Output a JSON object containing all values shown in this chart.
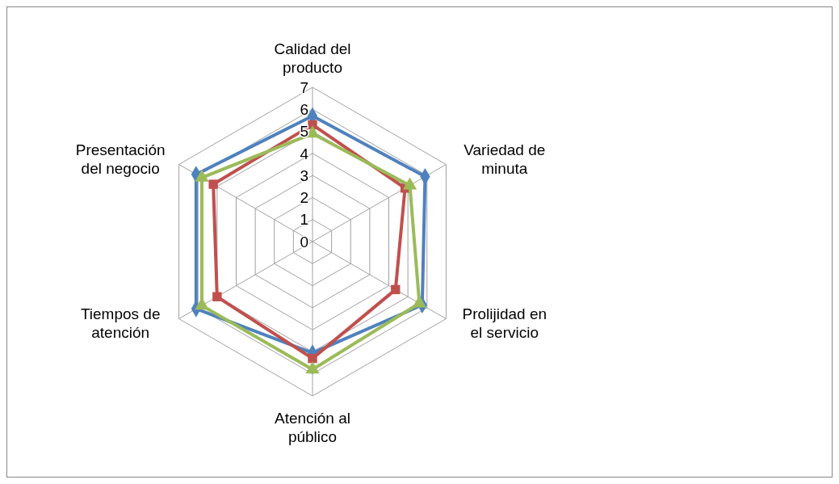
{
  "chart_data": {
    "type": "radar",
    "categories": [
      "Calidad del producto",
      "Variedad de minuta",
      "Prolijidad en el servicio",
      "Atención al público",
      "Tiempos de atención",
      "Presentación del negocio"
    ],
    "series": [
      {
        "color": "#4f81bd",
        "marker": "diamond",
        "values": [
          5.7,
          5.9,
          5.75,
          5.05,
          6.1,
          6.1
        ]
      },
      {
        "color": "#c0504d",
        "marker": "square",
        "values": [
          5.3,
          4.85,
          4.35,
          5.3,
          5.0,
          5.2
        ]
      },
      {
        "color": "#9bbb59",
        "marker": "triangle",
        "values": [
          4.9,
          5.1,
          5.6,
          5.8,
          5.8,
          5.8
        ]
      }
    ],
    "ylim": [
      0,
      7
    ],
    "yticks": [
      0,
      1,
      2,
      3,
      4,
      5,
      6,
      7
    ],
    "grid": true
  }
}
